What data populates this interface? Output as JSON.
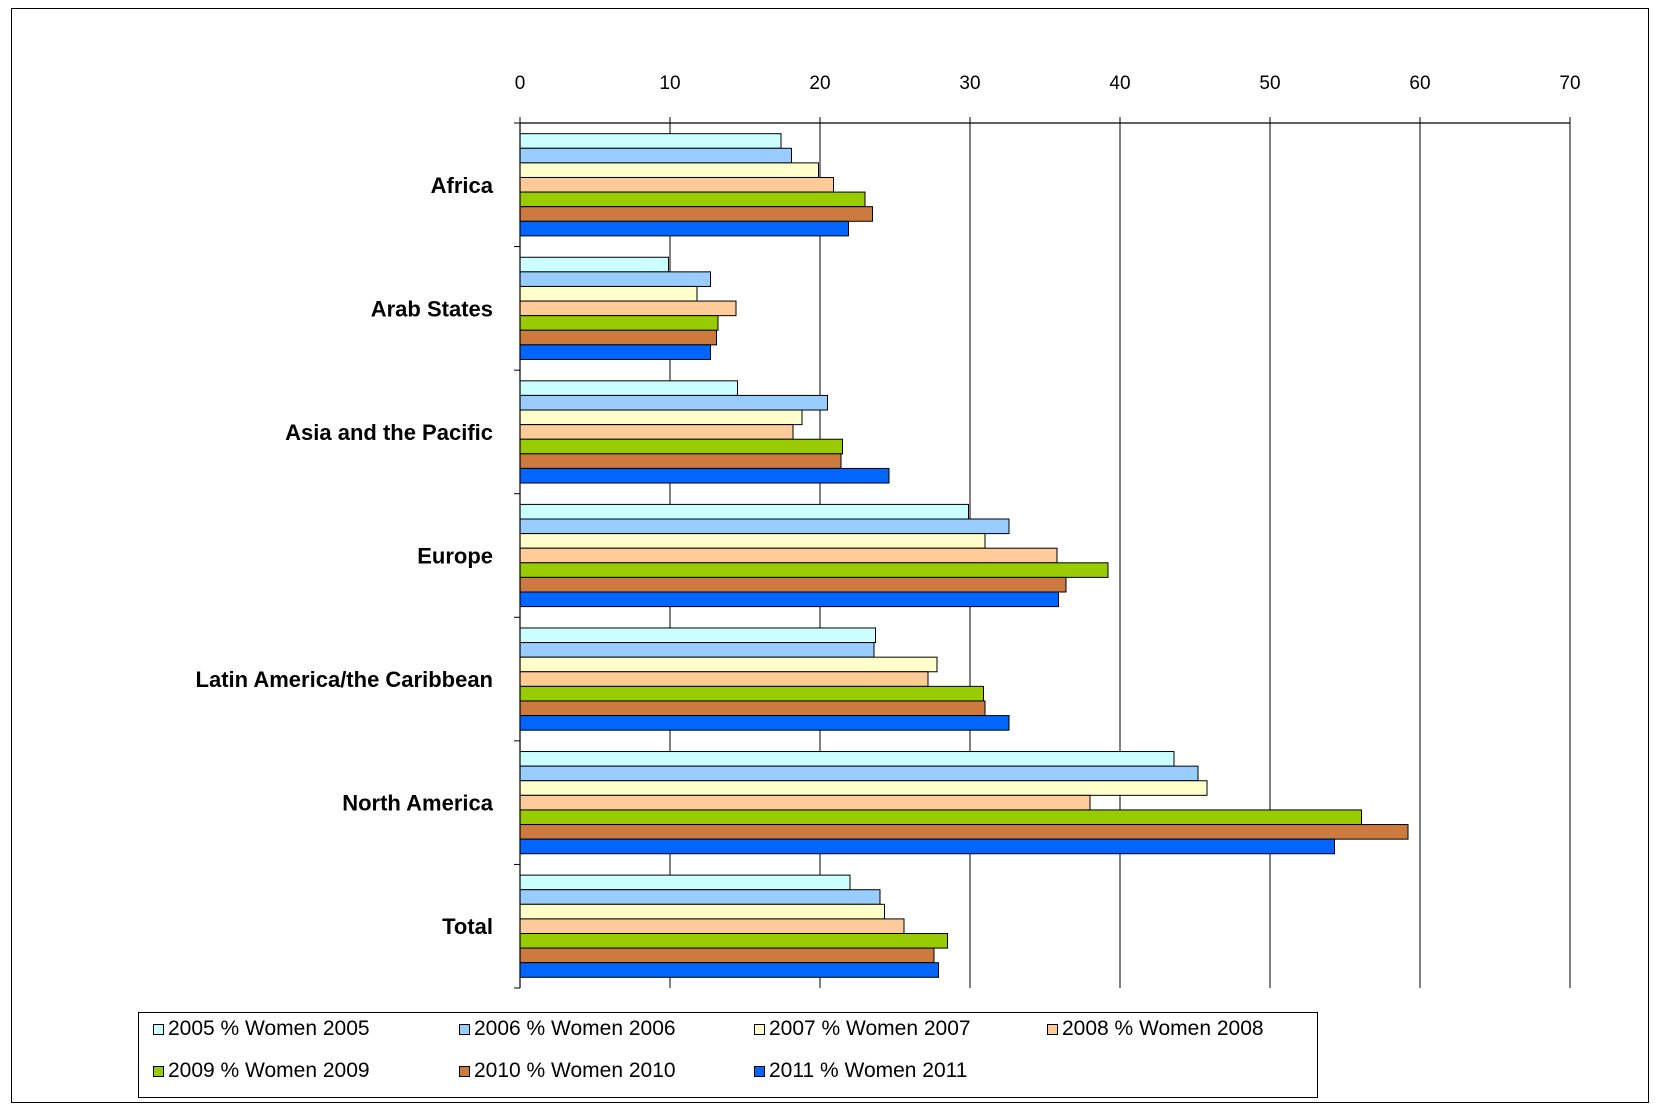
{
  "chart_data": {
    "type": "bar",
    "orientation": "horizontal",
    "categories": [
      "Africa",
      "Arab States",
      "Asia and the Pacific",
      "Europe",
      "Latin America/the Caribbean",
      "North America",
      "Total"
    ],
    "series": [
      {
        "name": "2005 % Women 2005",
        "color": "#ccffff",
        "values": [
          17.4,
          9.9,
          14.5,
          29.9,
          23.7,
          43.6,
          22.0
        ]
      },
      {
        "name": "2006 % Women 2006",
        "color": "#99ccff",
        "values": [
          18.1,
          12.7,
          20.5,
          32.6,
          23.6,
          45.2,
          24.0
        ]
      },
      {
        "name": "2007 % Women 2007",
        "color": "#ffffcc",
        "values": [
          19.9,
          11.8,
          18.8,
          31.0,
          27.8,
          45.8,
          24.3
        ]
      },
      {
        "name": "2008 % Women 2008",
        "color": "#ffcc99",
        "values": [
          20.9,
          14.4,
          18.2,
          35.8,
          27.2,
          38.0,
          25.6
        ]
      },
      {
        "name": "2009 % Women 2009",
        "color": "#99cc00",
        "values": [
          23.0,
          13.2,
          21.5,
          39.2,
          30.9,
          56.1,
          28.5
        ]
      },
      {
        "name": "2010 % Women 2010",
        "color": "#cc7a3d",
        "values": [
          23.5,
          13.1,
          21.4,
          36.4,
          31.0,
          59.2,
          27.6
        ]
      },
      {
        "name": "2011 % Women 2011",
        "color": "#0066ff",
        "values": [
          21.9,
          12.7,
          24.6,
          35.9,
          32.6,
          54.3,
          27.9
        ]
      }
    ],
    "xlim": [
      0,
      70
    ],
    "xticks": [
      0,
      10,
      20,
      30,
      40,
      50,
      60,
      70
    ],
    "title": "",
    "xlabel": "",
    "ylabel": "",
    "grid": "vertical",
    "axis_position": "top",
    "legend_position": "bottom"
  }
}
